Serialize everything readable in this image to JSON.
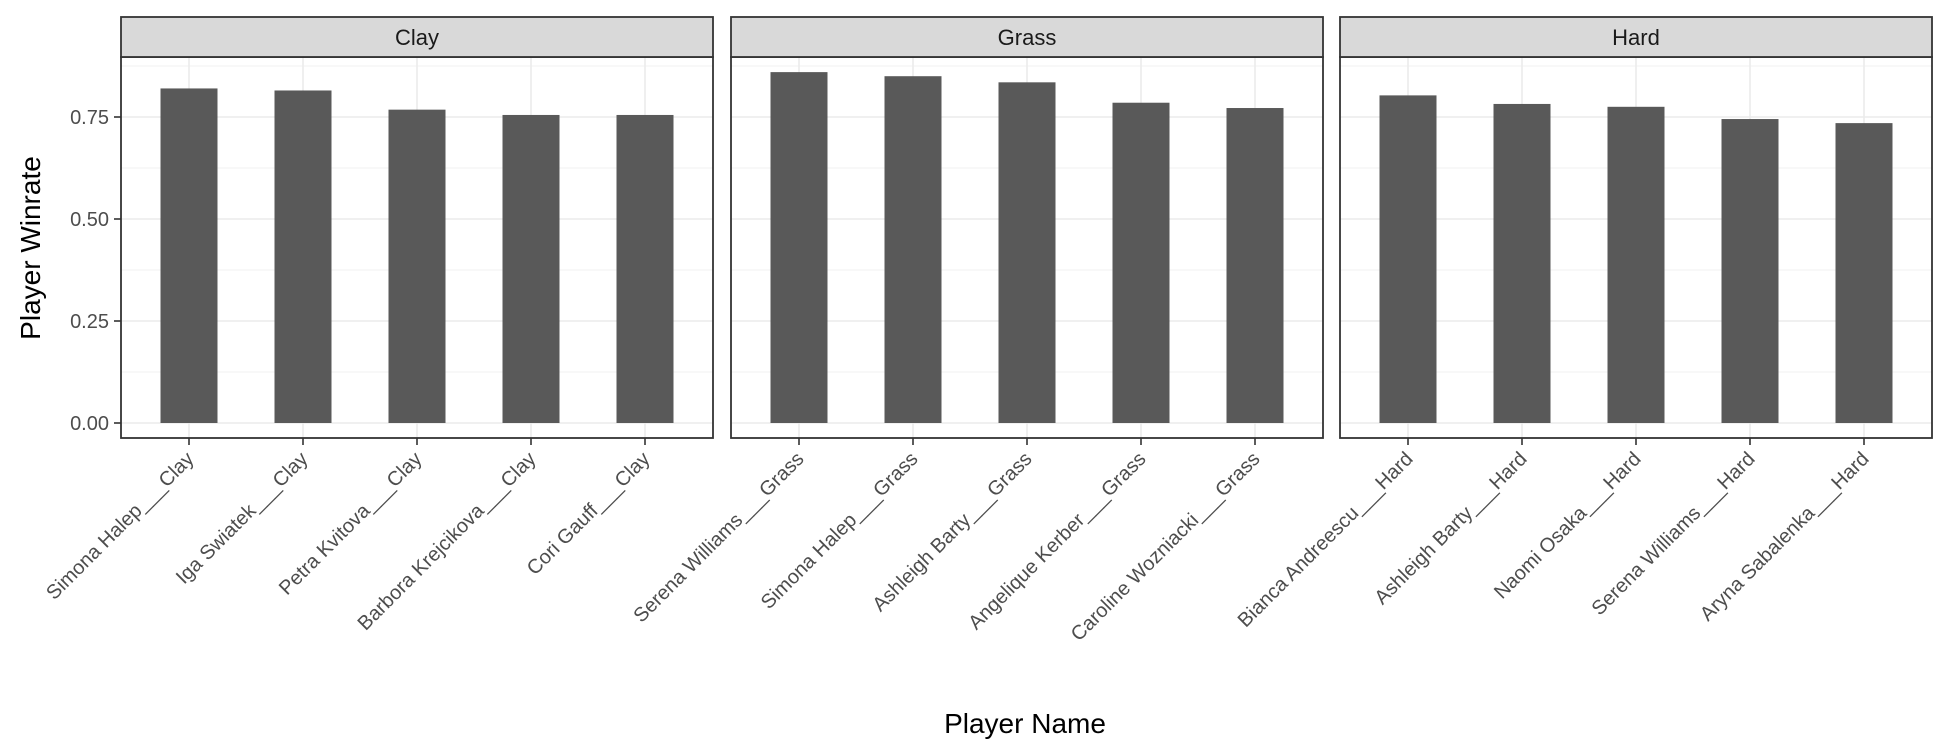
{
  "chart_data": {
    "type": "bar",
    "faceted": true,
    "xlabel": "Player Name",
    "ylabel": "Player Winrate",
    "ylim": [
      0,
      0.92
    ],
    "yticks": [
      0,
      0.25,
      0.5,
      0.75
    ],
    "ytick_labels": [
      "0.00",
      "0.25",
      "0.50",
      "0.75"
    ],
    "bar_color": "#595959",
    "strip_fill": "#d9d9d9",
    "grid": true,
    "panels": [
      {
        "strip": "Clay",
        "categories": [
          "Simona Halep___Clay",
          "Iga Swiatek___Clay",
          "Petra Kvitova___Clay",
          "Barbora Krejcikova___Clay",
          "Cori Gauff___Clay"
        ],
        "values": [
          0.82,
          0.815,
          0.768,
          0.755,
          0.755
        ]
      },
      {
        "strip": "Grass",
        "categories": [
          "Serena Williams___Grass",
          "Simona Halep___Grass",
          "Ashleigh Barty___Grass",
          "Angelique Kerber___Grass",
          "Caroline Wozniacki___Grass"
        ],
        "values": [
          0.86,
          0.85,
          0.835,
          0.785,
          0.772
        ]
      },
      {
        "strip": "Hard",
        "categories": [
          "Bianca Andreescu___Hard",
          "Ashleigh Barty___Hard",
          "Naomi Osaka___Hard",
          "Serena Williams___Hard",
          "Aryna Sabalenka___Hard"
        ],
        "values": [
          0.803,
          0.782,
          0.775,
          0.745,
          0.735
        ]
      }
    ]
  }
}
